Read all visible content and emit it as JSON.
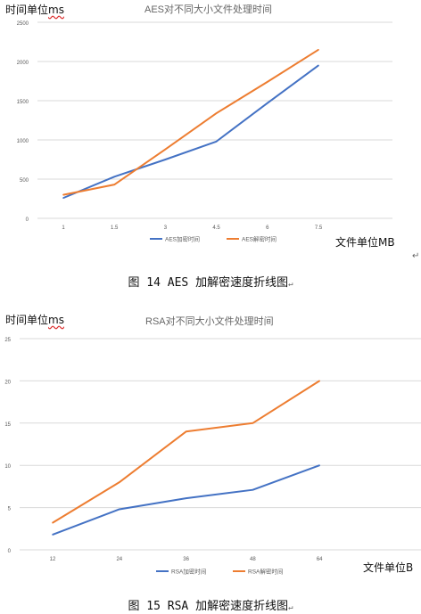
{
  "chart_data": [
    {
      "type": "line",
      "title": "AES对不同大小文件处理时间",
      "ylabel": "时间单位ms",
      "xlabel": "文件单位MB",
      "categories": [
        "1",
        "1.5",
        "3",
        "4.5",
        "6",
        "7.5"
      ],
      "ylim": [
        0,
        2500
      ],
      "yticks": [
        0,
        500,
        1000,
        1500,
        2000,
        2500
      ],
      "grid": true,
      "legend": "bottom",
      "series": [
        {
          "name": "AES加密时间",
          "color": "#4472c4",
          "values": [
            260,
            530,
            750,
            980,
            1470,
            1950
          ]
        },
        {
          "name": "AES解密时间",
          "color": "#ed7d31",
          "values": [
            300,
            430,
            880,
            1340,
            1740,
            2150
          ]
        }
      ]
    },
    {
      "type": "line",
      "title": "RSA对不同大小文件处理时间",
      "ylabel": "时间单位ms",
      "xlabel": "文件单位B",
      "categories": [
        "12",
        "24",
        "36",
        "48",
        "64"
      ],
      "ylim": [
        0,
        25
      ],
      "yticks": [
        0,
        5,
        10,
        15,
        20,
        25
      ],
      "grid": true,
      "legend": "bottom",
      "series": [
        {
          "name": "RSA加密时间",
          "color": "#4472c4",
          "values": [
            1.8,
            4.8,
            6.1,
            7.1,
            10
          ]
        },
        {
          "name": "RSA解密时间",
          "color": "#ed7d31",
          "values": [
            3.2,
            8.0,
            14.0,
            15.0,
            20
          ]
        }
      ]
    }
  ],
  "captions": {
    "aes": "图 14 AES 加解密速度折线图",
    "rsa": "图 15 RSA 加解密速度折线图"
  },
  "labels": {
    "y_unit_prefix": "时间单位",
    "y_unit_suffix": "ms",
    "para_mark": "↵"
  }
}
